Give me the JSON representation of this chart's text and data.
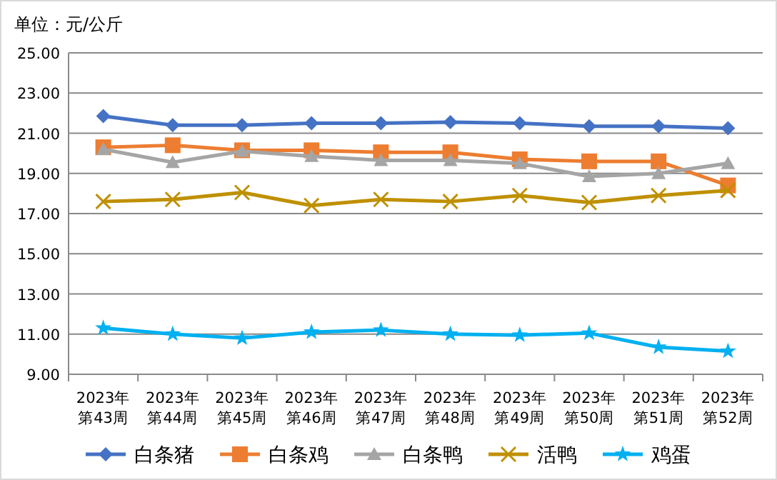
{
  "chart_data": {
    "type": "line",
    "ylabel": "单位：元/公斤",
    "categories": [
      "2023年第43周",
      "2023年第44周",
      "2023年第45周",
      "2023年第46周",
      "2023年第47周",
      "2023年第48周",
      "2023年第49周",
      "2023年第50周",
      "2023年第51周",
      "2023年第52周"
    ],
    "series": [
      {
        "name": "白条猪",
        "color": "#4472c4",
        "marker": "diamond",
        "values": [
          21.85,
          21.4,
          21.4,
          21.5,
          21.5,
          21.55,
          21.5,
          21.35,
          21.35,
          21.25
        ]
      },
      {
        "name": "白条鸡",
        "color": "#ed7d31",
        "marker": "square",
        "values": [
          20.3,
          20.4,
          20.15,
          20.15,
          20.05,
          20.05,
          19.7,
          19.6,
          19.6,
          18.4
        ]
      },
      {
        "name": "白条鸭",
        "color": "#a5a5a5",
        "marker": "triangle",
        "values": [
          20.2,
          19.55,
          20.1,
          19.85,
          19.65,
          19.65,
          19.5,
          18.85,
          19.0,
          19.5
        ]
      },
      {
        "name": "活鸭",
        "color": "#bf9000",
        "marker": "cross",
        "values": [
          17.6,
          17.7,
          18.05,
          17.4,
          17.7,
          17.6,
          17.9,
          17.55,
          17.9,
          18.15
        ]
      },
      {
        "name": "鸡蛋",
        "color": "#00b0f0",
        "marker": "star",
        "values": [
          11.3,
          11.0,
          10.8,
          11.1,
          11.2,
          11.0,
          10.95,
          11.05,
          10.35,
          10.15
        ]
      }
    ],
    "ylim": [
      9,
      25
    ],
    "yticks": [
      {
        "value": 9,
        "label": "9.00"
      },
      {
        "value": 11,
        "label": "11.00"
      },
      {
        "value": 13,
        "label": "13.00"
      },
      {
        "value": 15,
        "label": "15.00"
      },
      {
        "value": 17,
        "label": "17.00"
      },
      {
        "value": 19,
        "label": "19.00"
      },
      {
        "value": 21,
        "label": "21.00"
      },
      {
        "value": 23,
        "label": "23.00"
      },
      {
        "value": 25,
        "label": "25.00"
      }
    ],
    "grid": "y",
    "legend": "bottom",
    "line_style": "solid"
  }
}
